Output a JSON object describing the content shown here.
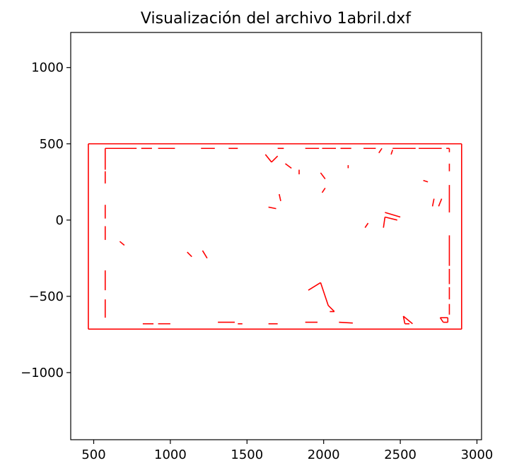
{
  "chart_data": {
    "type": "line",
    "title": "Visualización del archivo 1abril.dxf",
    "xlabel": "",
    "ylabel": "",
    "xlim": [
      350,
      3030
    ],
    "ylim": [
      -1440,
      1230
    ],
    "xticks": [
      500,
      1000,
      1500,
      2000,
      2500,
      3000
    ],
    "xtick_labels": [
      "500",
      "1000",
      "1500",
      "2000",
      "2500",
      "3000"
    ],
    "yticks": [
      1000,
      500,
      0,
      -500,
      -1000
    ],
    "ytick_labels": [
      "1000",
      "500",
      "0",
      "−500",
      "−1000"
    ],
    "grid": false,
    "line_color": "#ff0000",
    "segments": [
      [
        [
          465,
          500
        ],
        [
          2900,
          500
        ]
      ],
      [
        [
          2900,
          500
        ],
        [
          2900,
          -715
        ]
      ],
      [
        [
          2900,
          -715
        ],
        [
          465,
          -715
        ]
      ],
      [
        [
          465,
          -715
        ],
        [
          465,
          500
        ]
      ],
      [
        [
          575,
          470
        ],
        [
          780,
          470
        ]
      ],
      [
        [
          810,
          470
        ],
        [
          880,
          470
        ]
      ],
      [
        [
          920,
          470
        ],
        [
          1030,
          470
        ]
      ],
      [
        [
          1200,
          470
        ],
        [
          1290,
          470
        ]
      ],
      [
        [
          1380,
          470
        ],
        [
          1440,
          470
        ]
      ],
      [
        [
          1700,
          470
        ],
        [
          1740,
          470
        ]
      ],
      [
        [
          1880,
          470
        ],
        [
          1970,
          470
        ]
      ],
      [
        [
          1990,
          470
        ],
        [
          2080,
          470
        ]
      ],
      [
        [
          2110,
          470
        ],
        [
          2180,
          470
        ]
      ],
      [
        [
          2260,
          470
        ],
        [
          2340,
          470
        ]
      ],
      [
        [
          2450,
          470
        ],
        [
          2600,
          470
        ]
      ],
      [
        [
          2620,
          470
        ],
        [
          2770,
          470
        ]
      ],
      [
        [
          2800,
          470
        ],
        [
          2820,
          470
        ]
      ],
      [
        [
          2820,
          470
        ],
        [
          2820,
          445
        ]
      ],
      [
        [
          575,
          470
        ],
        [
          575,
          330
        ]
      ],
      [
        [
          575,
          320
        ],
        [
          575,
          240
        ]
      ],
      [
        [
          575,
          100
        ],
        [
          575,
          10
        ]
      ],
      [
        [
          575,
          -40
        ],
        [
          575,
          -130
        ]
      ],
      [
        [
          575,
          -330
        ],
        [
          575,
          -460
        ]
      ],
      [
        [
          575,
          -520
        ],
        [
          575,
          -640
        ]
      ],
      [
        [
          2820,
          370
        ],
        [
          2820,
          320
        ]
      ],
      [
        [
          2820,
          230
        ],
        [
          2820,
          50
        ]
      ],
      [
        [
          2820,
          -100
        ],
        [
          2820,
          -300
        ]
      ],
      [
        [
          2820,
          -320
        ],
        [
          2820,
          -420
        ]
      ],
      [
        [
          2820,
          -440
        ],
        [
          2820,
          -520
        ]
      ],
      [
        [
          2820,
          -550
        ],
        [
          2820,
          -620
        ]
      ],
      [
        [
          820,
          -680
        ],
        [
          890,
          -680
        ]
      ],
      [
        [
          920,
          -680
        ],
        [
          1000,
          -680
        ]
      ],
      [
        [
          1310,
          -670
        ],
        [
          1420,
          -670
        ]
      ],
      [
        [
          1440,
          -680
        ],
        [
          1470,
          -680
        ]
      ],
      [
        [
          1640,
          -680
        ],
        [
          1700,
          -680
        ]
      ],
      [
        [
          1880,
          -670
        ],
        [
          1960,
          -670
        ]
      ],
      [
        [
          2100,
          -670
        ],
        [
          2190,
          -675
        ]
      ],
      [
        [
          1620,
          430
        ],
        [
          1660,
          380
        ]
      ],
      [
        [
          1660,
          380
        ],
        [
          1700,
          420
        ]
      ],
      [
        [
          1750,
          370
        ],
        [
          1790,
          340
        ]
      ],
      [
        [
          1840,
          330
        ],
        [
          1840,
          300
        ]
      ],
      [
        [
          1980,
          310
        ],
        [
          2010,
          270
        ]
      ],
      [
        [
          2010,
          210
        ],
        [
          1990,
          180
        ]
      ],
      [
        [
          2160,
          360
        ],
        [
          2160,
          340
        ]
      ],
      [
        [
          2360,
          440
        ],
        [
          2380,
          470
        ]
      ],
      [
        [
          2440,
          430
        ],
        [
          2450,
          460
        ]
      ],
      [
        [
          2650,
          260
        ],
        [
          2680,
          250
        ]
      ],
      [
        [
          2720,
          140
        ],
        [
          2710,
          90
        ]
      ],
      [
        [
          2770,
          140
        ],
        [
          2750,
          90
        ]
      ],
      [
        [
          1640,
          85
        ],
        [
          1690,
          75
        ]
      ],
      [
        [
          1710,
          170
        ],
        [
          1720,
          125
        ]
      ],
      [
        [
          670,
          -140
        ],
        [
          700,
          -165
        ]
      ],
      [
        [
          1110,
          -210
        ],
        [
          1140,
          -240
        ]
      ],
      [
        [
          1210,
          -200
        ],
        [
          1240,
          -250
        ]
      ],
      [
        [
          2290,
          -20
        ],
        [
          2270,
          -50
        ]
      ],
      [
        [
          2400,
          20
        ],
        [
          2390,
          -50
        ]
      ],
      [
        [
          2400,
          50
        ],
        [
          2500,
          20
        ]
      ],
      [
        [
          2400,
          20
        ],
        [
          2480,
          0
        ]
      ],
      [
        [
          1900,
          -460
        ],
        [
          1980,
          -410
        ]
      ],
      [
        [
          1980,
          -410
        ],
        [
          2030,
          -560
        ]
      ],
      [
        [
          2030,
          -560
        ],
        [
          2070,
          -600
        ]
      ],
      [
        [
          2040,
          -600
        ],
        [
          2070,
          -600
        ]
      ],
      [
        [
          2520,
          -630
        ],
        [
          2530,
          -680
        ]
      ],
      [
        [
          2530,
          -680
        ],
        [
          2560,
          -680
        ]
      ],
      [
        [
          2520,
          -630
        ],
        [
          2580,
          -680
        ]
      ],
      [
        [
          2760,
          -640
        ],
        [
          2810,
          -640
        ]
      ],
      [
        [
          2810,
          -640
        ],
        [
          2810,
          -670
        ]
      ],
      [
        [
          2810,
          -670
        ],
        [
          2780,
          -670
        ]
      ],
      [
        [
          2780,
          -670
        ],
        [
          2760,
          -640
        ]
      ]
    ]
  }
}
